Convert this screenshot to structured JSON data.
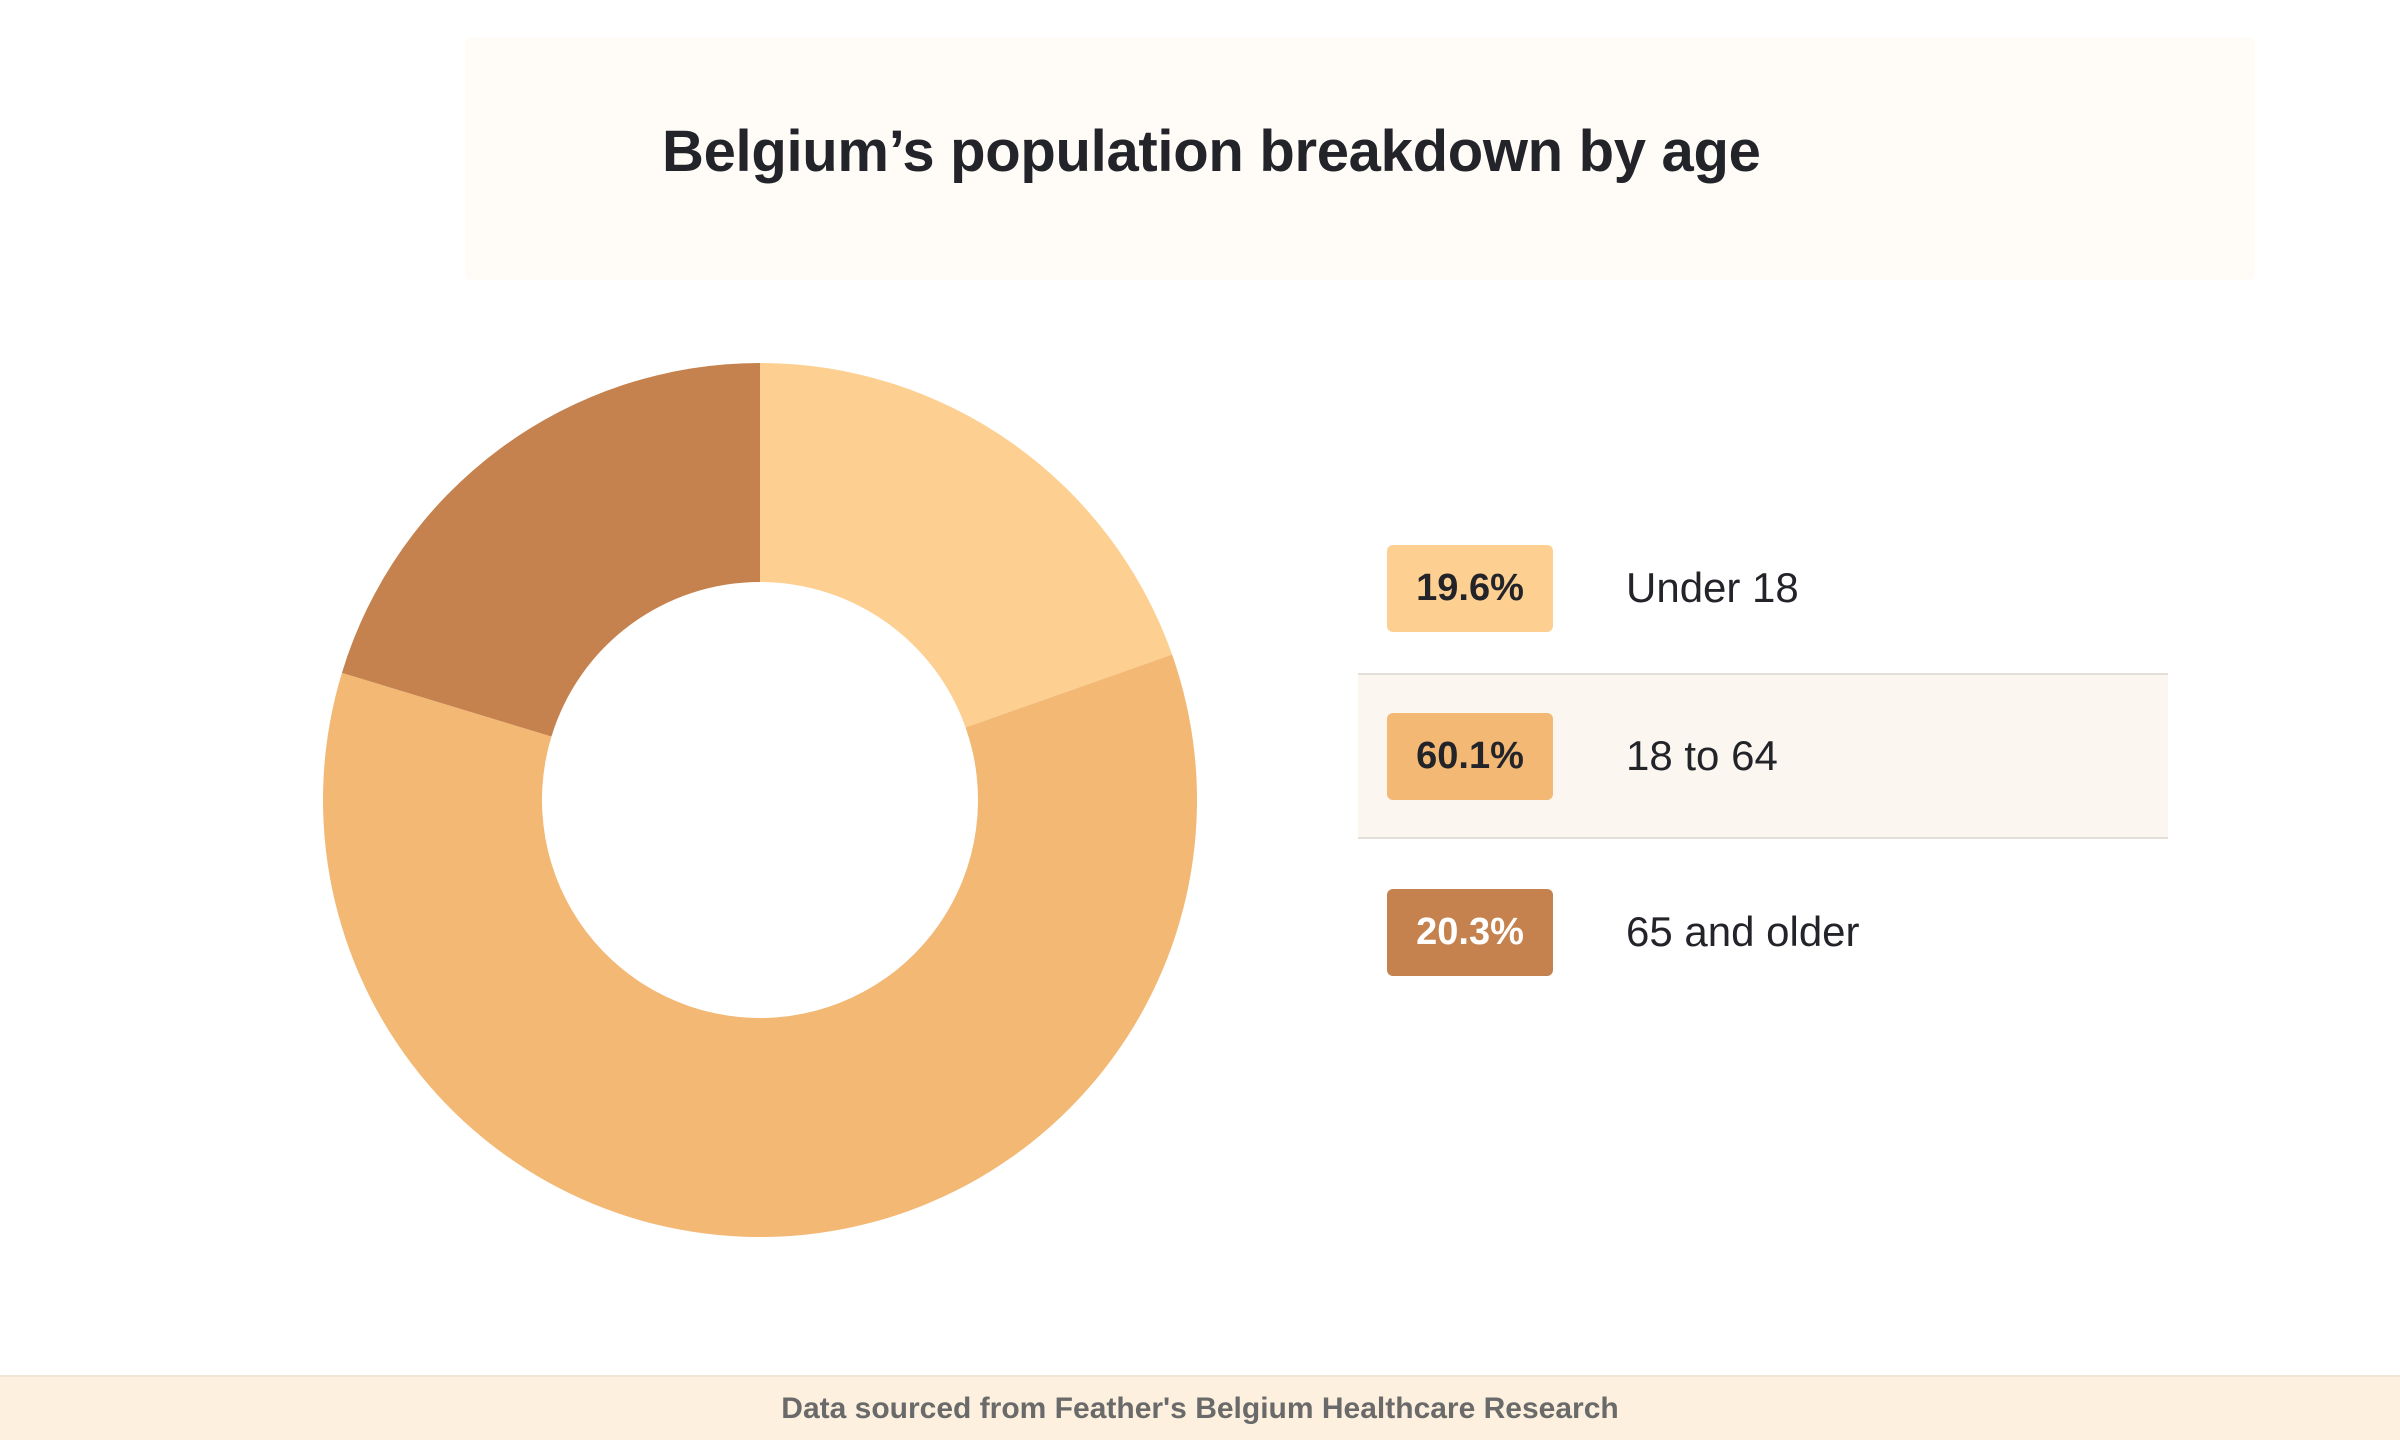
{
  "title": "Belgium’s population breakdown by age",
  "footer": "Data sourced from Feather's Belgium Healthcare Research",
  "chart_data": {
    "type": "pie",
    "variant": "donut",
    "unit": "%",
    "start": "12 o'clock, clockwise",
    "slices": [
      {
        "label": "Under 18",
        "value": 19.6,
        "display": "19.6%",
        "color": "#fdd092",
        "text_color": "#23242a"
      },
      {
        "label": "18 to 64",
        "value": 60.1,
        "display": "60.1%",
        "color": "#f2b874",
        "text_color": "#23242a",
        "highlighted": true
      },
      {
        "label": "65 and older",
        "value": 20.3,
        "display": "20.3%",
        "color": "#c5824e",
        "text_color": "#ffffff"
      }
    ]
  }
}
